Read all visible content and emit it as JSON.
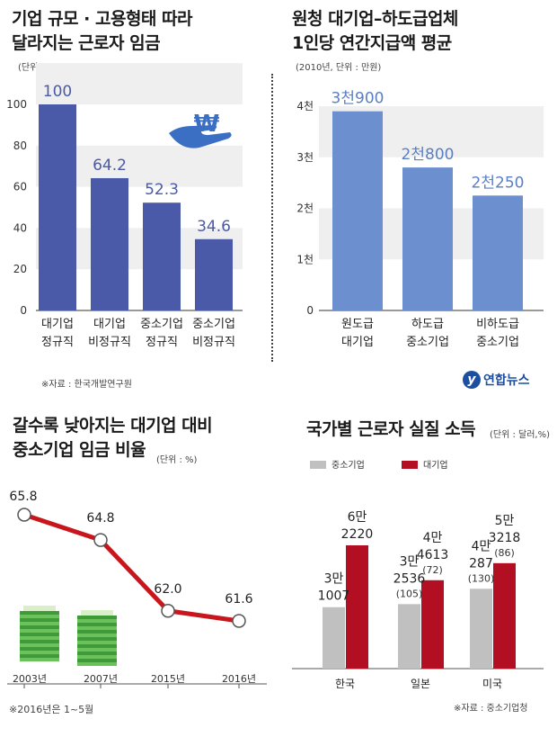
{
  "chart_data": [
    {
      "type": "bar",
      "title": "기업 규모 · 고용형태 따라\n달라지는 근로자 임금",
      "unit_note": "(단위 : %)",
      "categories": [
        "대기업\n정규직",
        "대기업\n비정규직",
        "중소기업\n정규직",
        "중소기업\n비정규직"
      ],
      "values": [
        100,
        64.2,
        52.3,
        34.6
      ],
      "value_labels": [
        "100",
        "64.2",
        "52.3",
        "34.6"
      ],
      "yticks": [
        "0",
        "20",
        "40",
        "60",
        "80",
        "100"
      ],
      "ylim": [
        0,
        120
      ],
      "source": "※자료 : 한국개발연구원",
      "colors": {
        "bar": "#4a5aa8",
        "label": "#4a5aa8"
      },
      "icon": "won-hand-icon"
    },
    {
      "type": "bar",
      "title": "원청 대기업–하도급업체\n1인당 연간지급액 평균",
      "unit_note": "(2010년, 단위 : 만원)",
      "categories": [
        "원도급\n대기업",
        "하도급\n중소기업",
        "비하도급\n중소기업"
      ],
      "values": [
        3900,
        2800,
        2250
      ],
      "value_labels": [
        "3천900",
        "2천800",
        "2천250"
      ],
      "yticks": [
        "0",
        "1천",
        "2천",
        "3천",
        "4천"
      ],
      "ylim": [
        0,
        4400
      ],
      "logo": "연합뉴스",
      "colors": {
        "bar": "#6c8fcf",
        "label": "#5a7fc4"
      }
    },
    {
      "type": "line",
      "title": "갈수록 낮아지는 대기업 대비\n중소기업 임금 비율",
      "unit_note": "(단위 : %)",
      "x": [
        "2003년",
        "2007년",
        "2015년",
        "2016년"
      ],
      "values": [
        65.8,
        64.8,
        62.0,
        61.6
      ],
      "value_labels": [
        "65.8",
        "64.8",
        "62.0",
        "61.6"
      ],
      "note": "※2016년은 1~5월",
      "colors": {
        "line": "#c8161d",
        "marker": "#ffffff"
      },
      "icon": "money-stack-icon"
    },
    {
      "type": "bar",
      "title": "국가별 근로자 실질 소득",
      "unit_note": "(단위 : 달러,%)",
      "categories": [
        "한국",
        "일본",
        "미국"
      ],
      "series": [
        {
          "name": "중소기업",
          "values": [
            31007,
            32536,
            40287
          ],
          "value_labels": [
            "3만\n1007",
            "3만\n2536",
            "4만\n287"
          ],
          "percent_labels": [
            "",
            "(105)",
            "(130)"
          ]
        },
        {
          "name": "대기업",
          "values": [
            62220,
            44613,
            53218
          ],
          "value_labels": [
            "6만\n2220",
            "4만\n4613",
            "5만\n3218"
          ],
          "percent_labels": [
            "",
            "(72)",
            "(86)"
          ]
        }
      ],
      "source": "※자료 : 중소기업청",
      "colors": {
        "sme": "#c0c0c0",
        "large": "#b20f22"
      }
    }
  ]
}
